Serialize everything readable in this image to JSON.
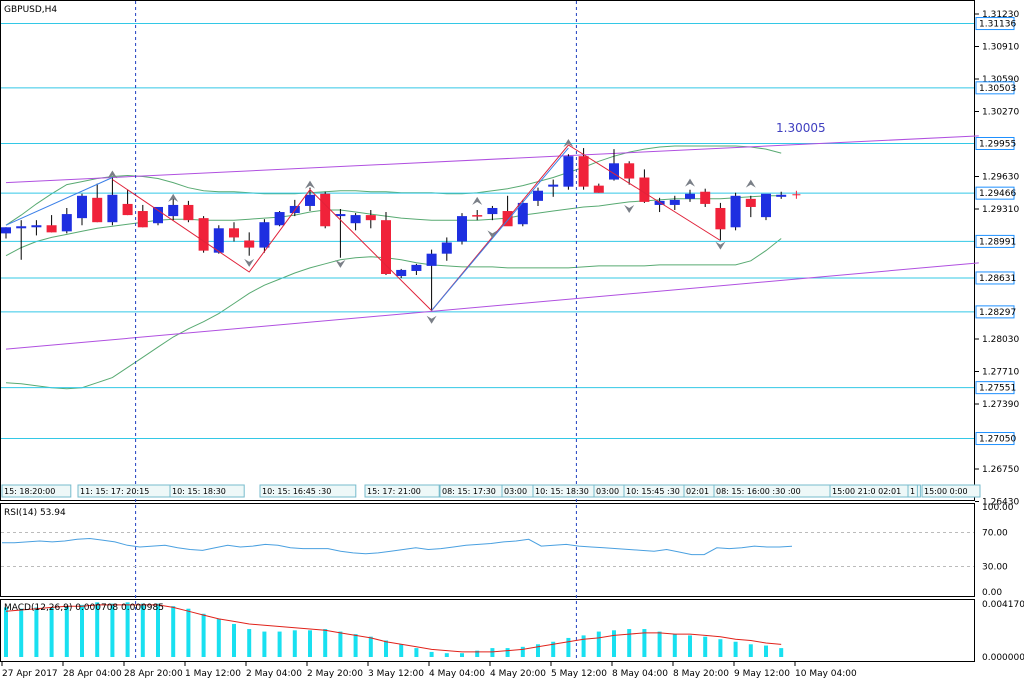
{
  "window": {
    "title": "GBPUSD,H4",
    "trendline_label": "1.30005"
  },
  "colors": {
    "bull": "#1e2fe0",
    "bear": "#f0223a",
    "hline": "#33c8e6",
    "channel": "#b050e0",
    "bands": "#58aa72",
    "zigzag": "#e0223a",
    "trend_up": "#3a7fe8",
    "rsi": "#4aa0e0",
    "macd_hist": "#19e0f0",
    "macd_signal": "#e0221a",
    "axis_box": "#1e90ff"
  },
  "price_axis": {
    "ticks": [
      "1.31230",
      "1.30910",
      "1.30590",
      "1.30270",
      "1.29630",
      "1.29310",
      "1.28030",
      "1.27710",
      "1.27390",
      "1.26750",
      "1.26430"
    ],
    "boxed": [
      "1.31136",
      "1.30503",
      "1.29955",
      "1.29466",
      "1.28991",
      "1.28631",
      "1.28297",
      "1.27551",
      "1.27050"
    ]
  },
  "rsi_panel": {
    "label": "RSI(14) 53.94",
    "ticks": [
      "100.00",
      "70.00",
      "30.00",
      "0.00"
    ]
  },
  "macd_panel": {
    "label": "MACD(12,26,9) 0.000708 0.000985",
    "ticks": [
      "0.004170",
      "0.000000"
    ]
  },
  "time_axis": [
    "27 Apr 2017",
    "28 Apr 04:00",
    "28 Apr 20:00",
    "1 May 12:00",
    "2 May 04:00",
    "2 May 20:00",
    "3 May 12:00",
    "4 May 04:00",
    "4 May 20:00",
    "5 May 12:00",
    "8 May 04:00",
    "8 May 20:00",
    "9 May 12:00",
    "10 May 04:00"
  ],
  "session_labels": [
    "15: 18:20:00",
    "11: 15: 17: 20:15",
    "10: 15: 18:30",
    "10: 15: 16:45 :30",
    "15: 17: 21:00",
    "08: 15: 17:30",
    "03:00",
    "10: 15: 18:30",
    "03:00",
    "10: 15:45 :30",
    "02:01",
    "08: 15: 16:00 :30 :00",
    "15:00 21:0 02:01",
    "1",
    "15:00 0:00"
  ],
  "chart_data": {
    "type": "candlestick",
    "symbol": "GBPUSD",
    "timeframe": "H4",
    "candles": [
      {
        "o": 1.2907,
        "h": 1.2913,
        "l": 1.2902,
        "c": 1.2913
      },
      {
        "o": 1.2912,
        "h": 1.292,
        "l": 1.2881,
        "c": 1.2914
      },
      {
        "o": 1.2913,
        "h": 1.292,
        "l": 1.2905,
        "c": 1.2915
      },
      {
        "o": 1.2915,
        "h": 1.2925,
        "l": 1.2908,
        "c": 1.2908
      },
      {
        "o": 1.2909,
        "h": 1.2932,
        "l": 1.2907,
        "c": 1.2926
      },
      {
        "o": 1.2922,
        "h": 1.2946,
        "l": 1.2915,
        "c": 1.2944
      },
      {
        "o": 1.2942,
        "h": 1.2956,
        "l": 1.2918,
        "c": 1.2918
      },
      {
        "o": 1.2918,
        "h": 1.2962,
        "l": 1.2915,
        "c": 1.2945
      },
      {
        "o": 1.2936,
        "h": 1.295,
        "l": 1.2925,
        "c": 1.2925
      },
      {
        "o": 1.2929,
        "h": 1.2935,
        "l": 1.2913,
        "c": 1.2913
      },
      {
        "o": 1.2917,
        "h": 1.2933,
        "l": 1.2915,
        "c": 1.2933
      },
      {
        "o": 1.2924,
        "h": 1.2945,
        "l": 1.292,
        "c": 1.2935
      },
      {
        "o": 1.2935,
        "h": 1.2939,
        "l": 1.2918,
        "c": 1.292
      },
      {
        "o": 1.2922,
        "h": 1.2924,
        "l": 1.2888,
        "c": 1.289
      },
      {
        "o": 1.2888,
        "h": 1.2915,
        "l": 1.2887,
        "c": 1.2912
      },
      {
        "o": 1.2912,
        "h": 1.2918,
        "l": 1.2899,
        "c": 1.2903
      },
      {
        "o": 1.29,
        "h": 1.2908,
        "l": 1.2885,
        "c": 1.2893
      },
      {
        "o": 1.2893,
        "h": 1.2921,
        "l": 1.2888,
        "c": 1.2918
      },
      {
        "o": 1.2915,
        "h": 1.2929,
        "l": 1.2914,
        "c": 1.2928
      },
      {
        "o": 1.2927,
        "h": 1.294,
        "l": 1.2924,
        "c": 1.2934
      },
      {
        "o": 1.2934,
        "h": 1.2952,
        "l": 1.2929,
        "c": 1.2945
      },
      {
        "o": 1.2946,
        "h": 1.2948,
        "l": 1.2912,
        "c": 1.2914
      },
      {
        "o": 1.2924,
        "h": 1.2931,
        "l": 1.2883,
        "c": 1.2926
      },
      {
        "o": 1.2917,
        "h": 1.2927,
        "l": 1.291,
        "c": 1.2925
      },
      {
        "o": 1.2925,
        "h": 1.293,
        "l": 1.2912,
        "c": 1.292
      },
      {
        "o": 1.292,
        "h": 1.2928,
        "l": 1.2866,
        "c": 1.2867
      },
      {
        "o": 1.2865,
        "h": 1.2872,
        "l": 1.2863,
        "c": 1.2871
      },
      {
        "o": 1.287,
        "h": 1.2877,
        "l": 1.2866,
        "c": 1.2876
      },
      {
        "o": 1.2875,
        "h": 1.2891,
        "l": 1.2831,
        "c": 1.2887
      },
      {
        "o": 1.2887,
        "h": 1.2903,
        "l": 1.288,
        "c": 1.2898
      },
      {
        "o": 1.2899,
        "h": 1.2927,
        "l": 1.2896,
        "c": 1.2924
      },
      {
        "o": 1.2925,
        "h": 1.293,
        "l": 1.292,
        "c": 1.2924
      },
      {
        "o": 1.2926,
        "h": 1.2934,
        "l": 1.292,
        "c": 1.2932
      },
      {
        "o": 1.2929,
        "h": 1.2944,
        "l": 1.2915,
        "c": 1.2914
      },
      {
        "o": 1.2916,
        "h": 1.294,
        "l": 1.2914,
        "c": 1.2937
      },
      {
        "o": 1.2939,
        "h": 1.2952,
        "l": 1.2934,
        "c": 1.2949
      },
      {
        "o": 1.2953,
        "h": 1.296,
        "l": 1.2943,
        "c": 1.2955
      },
      {
        "o": 1.2953,
        "h": 1.2985,
        "l": 1.295,
        "c": 1.2983
      },
      {
        "o": 1.2983,
        "h": 1.2991,
        "l": 1.295,
        "c": 1.2953
      },
      {
        "o": 1.2954,
        "h": 1.2956,
        "l": 1.2947,
        "c": 1.2947
      },
      {
        "o": 1.296,
        "h": 1.299,
        "l": 1.2959,
        "c": 1.2976
      },
      {
        "o": 1.2976,
        "h": 1.2978,
        "l": 1.2955,
        "c": 1.2961
      },
      {
        "o": 1.2962,
        "h": 1.297,
        "l": 1.2937,
        "c": 1.2938
      },
      {
        "o": 1.2935,
        "h": 1.2942,
        "l": 1.2928,
        "c": 1.2939
      },
      {
        "o": 1.2935,
        "h": 1.2944,
        "l": 1.293,
        "c": 1.294
      },
      {
        "o": 1.2941,
        "h": 1.295,
        "l": 1.2938,
        "c": 1.2946
      },
      {
        "o": 1.2948,
        "h": 1.2951,
        "l": 1.2933,
        "c": 1.2936
      },
      {
        "o": 1.2932,
        "h": 1.2937,
        "l": 1.29,
        "c": 1.2911
      },
      {
        "o": 1.2913,
        "h": 1.2947,
        "l": 1.291,
        "c": 1.2944
      },
      {
        "o": 1.2941,
        "h": 1.2944,
        "l": 1.2923,
        "c": 1.2933
      },
      {
        "o": 1.2923,
        "h": 1.2945,
        "l": 1.292,
        "c": 1.2946
      },
      {
        "o": 1.2943,
        "h": 1.2948,
        "l": 1.2941,
        "c": 1.2945
      }
    ],
    "bands_upper": [
      1.2915,
      1.2925,
      1.2936,
      1.2946,
      1.2955,
      1.2958,
      1.2961,
      1.2963,
      1.2964,
      1.2963,
      1.2961,
      1.2957,
      1.2952,
      1.2949,
      1.2948,
      1.2948,
      1.2947,
      1.2946,
      1.2946,
      1.2946,
      1.2947,
      1.2948,
      1.2949,
      1.2949,
      1.2948,
      1.2948,
      1.2947,
      1.2947,
      1.2947,
      1.2946,
      1.2946,
      1.2947,
      1.2949,
      1.2951,
      1.2954,
      1.2958,
      1.2962,
      1.2967,
      1.2972,
      1.2978,
      1.2983,
      1.2987,
      1.299,
      1.2992,
      1.2993,
      1.2993,
      1.2993,
      1.2993,
      1.2993,
      1.2992,
      1.299,
      1.2986
    ],
    "bands_middle": [
      1.2885,
      1.2893,
      1.2899,
      1.2903,
      1.2906,
      1.2909,
      1.2912,
      1.2914,
      1.2916,
      1.2918,
      1.292,
      1.2921,
      1.2921,
      1.292,
      1.292,
      1.292,
      1.2921,
      1.2922,
      1.2923,
      1.2925,
      1.2928,
      1.293,
      1.293,
      1.2928,
      1.2926,
      1.2924,
      1.2922,
      1.2921,
      1.292,
      1.292,
      1.292,
      1.292,
      1.2921,
      1.2922,
      1.2925,
      1.2927,
      1.2929,
      1.2931,
      1.2933,
      1.2934,
      1.2936,
      1.2938,
      1.2939,
      1.294,
      1.2941,
      1.2941,
      1.2941,
      1.2941,
      1.2942,
      1.2943,
      1.2944,
      1.2944
    ],
    "bands_lower": [
      1.276,
      1.2759,
      1.2757,
      1.2755,
      1.2754,
      1.2755,
      1.276,
      1.2765,
      1.2775,
      1.2785,
      1.2795,
      1.2805,
      1.2813,
      1.282,
      1.2828,
      1.2838,
      1.2848,
      1.2856,
      1.2862,
      1.2868,
      1.2873,
      1.2877,
      1.2881,
      1.2883,
      1.2884,
      1.2883,
      1.2881,
      1.2878,
      1.2876,
      1.2875,
      1.2874,
      1.2874,
      1.2874,
      1.2873,
      1.2873,
      1.2873,
      1.2873,
      1.2873,
      1.2874,
      1.2875,
      1.2875,
      1.2875,
      1.2875,
      1.2876,
      1.2876,
      1.2876,
      1.2876,
      1.2876,
      1.2876,
      1.288,
      1.289,
      1.2902
    ],
    "horizontal_levels": [
      1.31136,
      1.30503,
      1.29955,
      1.29466,
      1.28991,
      1.28631,
      1.28297,
      1.27551,
      1.2705
    ],
    "channel_upper": {
      "from": [
        0,
        1.2957
      ],
      "to": [
        64,
        1.3003
      ]
    },
    "channel_lower": {
      "from": [
        0,
        1.2793
      ],
      "to": [
        64,
        1.2878
      ]
    },
    "vertical_markers": [
      8,
      37
    ],
    "zigzag": [
      [
        7,
        1.296
      ],
      [
        16,
        1.2869
      ],
      [
        20,
        1.295
      ],
      [
        28,
        1.2831
      ],
      [
        37,
        1.2994
      ],
      [
        47,
        1.29
      ]
    ],
    "trend_up": [
      [
        0,
        1.2915
      ],
      [
        7,
        1.2962
      ],
      null,
      [
        28,
        1.2831
      ],
      [
        37,
        1.2991
      ]
    ],
    "fractals_up": [
      [
        7,
        1.2965
      ],
      [
        11,
        1.2942
      ],
      [
        20,
        1.2955
      ],
      [
        31,
        1.2939
      ],
      [
        37,
        1.2996
      ],
      [
        45,
        1.2957
      ],
      [
        49,
        1.2956
      ]
    ],
    "fractals_down": [
      [
        16,
        1.2878
      ],
      [
        22,
        1.2877
      ],
      [
        28,
        1.2822
      ],
      [
        32,
        1.2906
      ],
      [
        41,
        1.2931
      ],
      [
        47,
        1.2895
      ]
    ],
    "rsi": [
      58,
      58,
      59,
      60,
      59,
      60,
      62,
      63,
      61,
      59,
      55,
      53,
      54,
      55,
      52,
      50,
      49,
      52,
      55,
      53,
      54,
      56,
      55,
      52,
      51,
      51,
      51,
      48,
      46,
      45,
      46,
      48,
      50,
      52,
      50,
      51,
      53,
      55,
      56,
      57,
      59,
      60,
      62,
      54,
      55,
      56,
      54,
      53,
      52,
      51,
      50,
      49,
      48,
      50,
      47,
      44,
      44,
      52,
      51,
      52,
      54,
      53,
      53,
      53.94
    ],
    "macd_hist": [
      0.0039,
      0.0038,
      0.0039,
      0.0039,
      0.004,
      0.0041,
      0.0043,
      0.0042,
      0.0043,
      0.0042,
      0.0042,
      0.004,
      0.0038,
      0.0034,
      0.003,
      0.0026,
      0.0022,
      0.002,
      0.002,
      0.0021,
      0.0021,
      0.0022,
      0.002,
      0.0018,
      0.0016,
      0.0013,
      0.001,
      0.0007,
      0.0004,
      0.0003,
      0.0003,
      0.0005,
      0.0007,
      0.0007,
      0.0008,
      0.001,
      0.0012,
      0.0015,
      0.0017,
      0.002,
      0.0021,
      0.0022,
      0.0022,
      0.002,
      0.0018,
      0.0017,
      0.0016,
      0.0014,
      0.0012,
      0.001,
      0.0009,
      0.0007
    ],
    "macd_signal": [
      0.0036,
      0.0037,
      0.0038,
      0.0039,
      0.004,
      0.004,
      0.0041,
      0.0041,
      0.0041,
      0.0041,
      0.0041,
      0.0039,
      0.0036,
      0.0033,
      0.003,
      0.0028,
      0.0026,
      0.0025,
      0.0024,
      0.0023,
      0.0022,
      0.0021,
      0.0019,
      0.0017,
      0.0015,
      0.0012,
      0.001,
      0.0008,
      0.0006,
      0.0005,
      0.0004,
      0.0004,
      0.0004,
      0.0005,
      0.0006,
      0.0008,
      0.001,
      0.0012,
      0.0014,
      0.0015,
      0.0017,
      0.0018,
      0.0019,
      0.0019,
      0.0018,
      0.0018,
      0.0017,
      0.0016,
      0.0014,
      0.0013,
      0.0011,
      0.00099
    ]
  }
}
